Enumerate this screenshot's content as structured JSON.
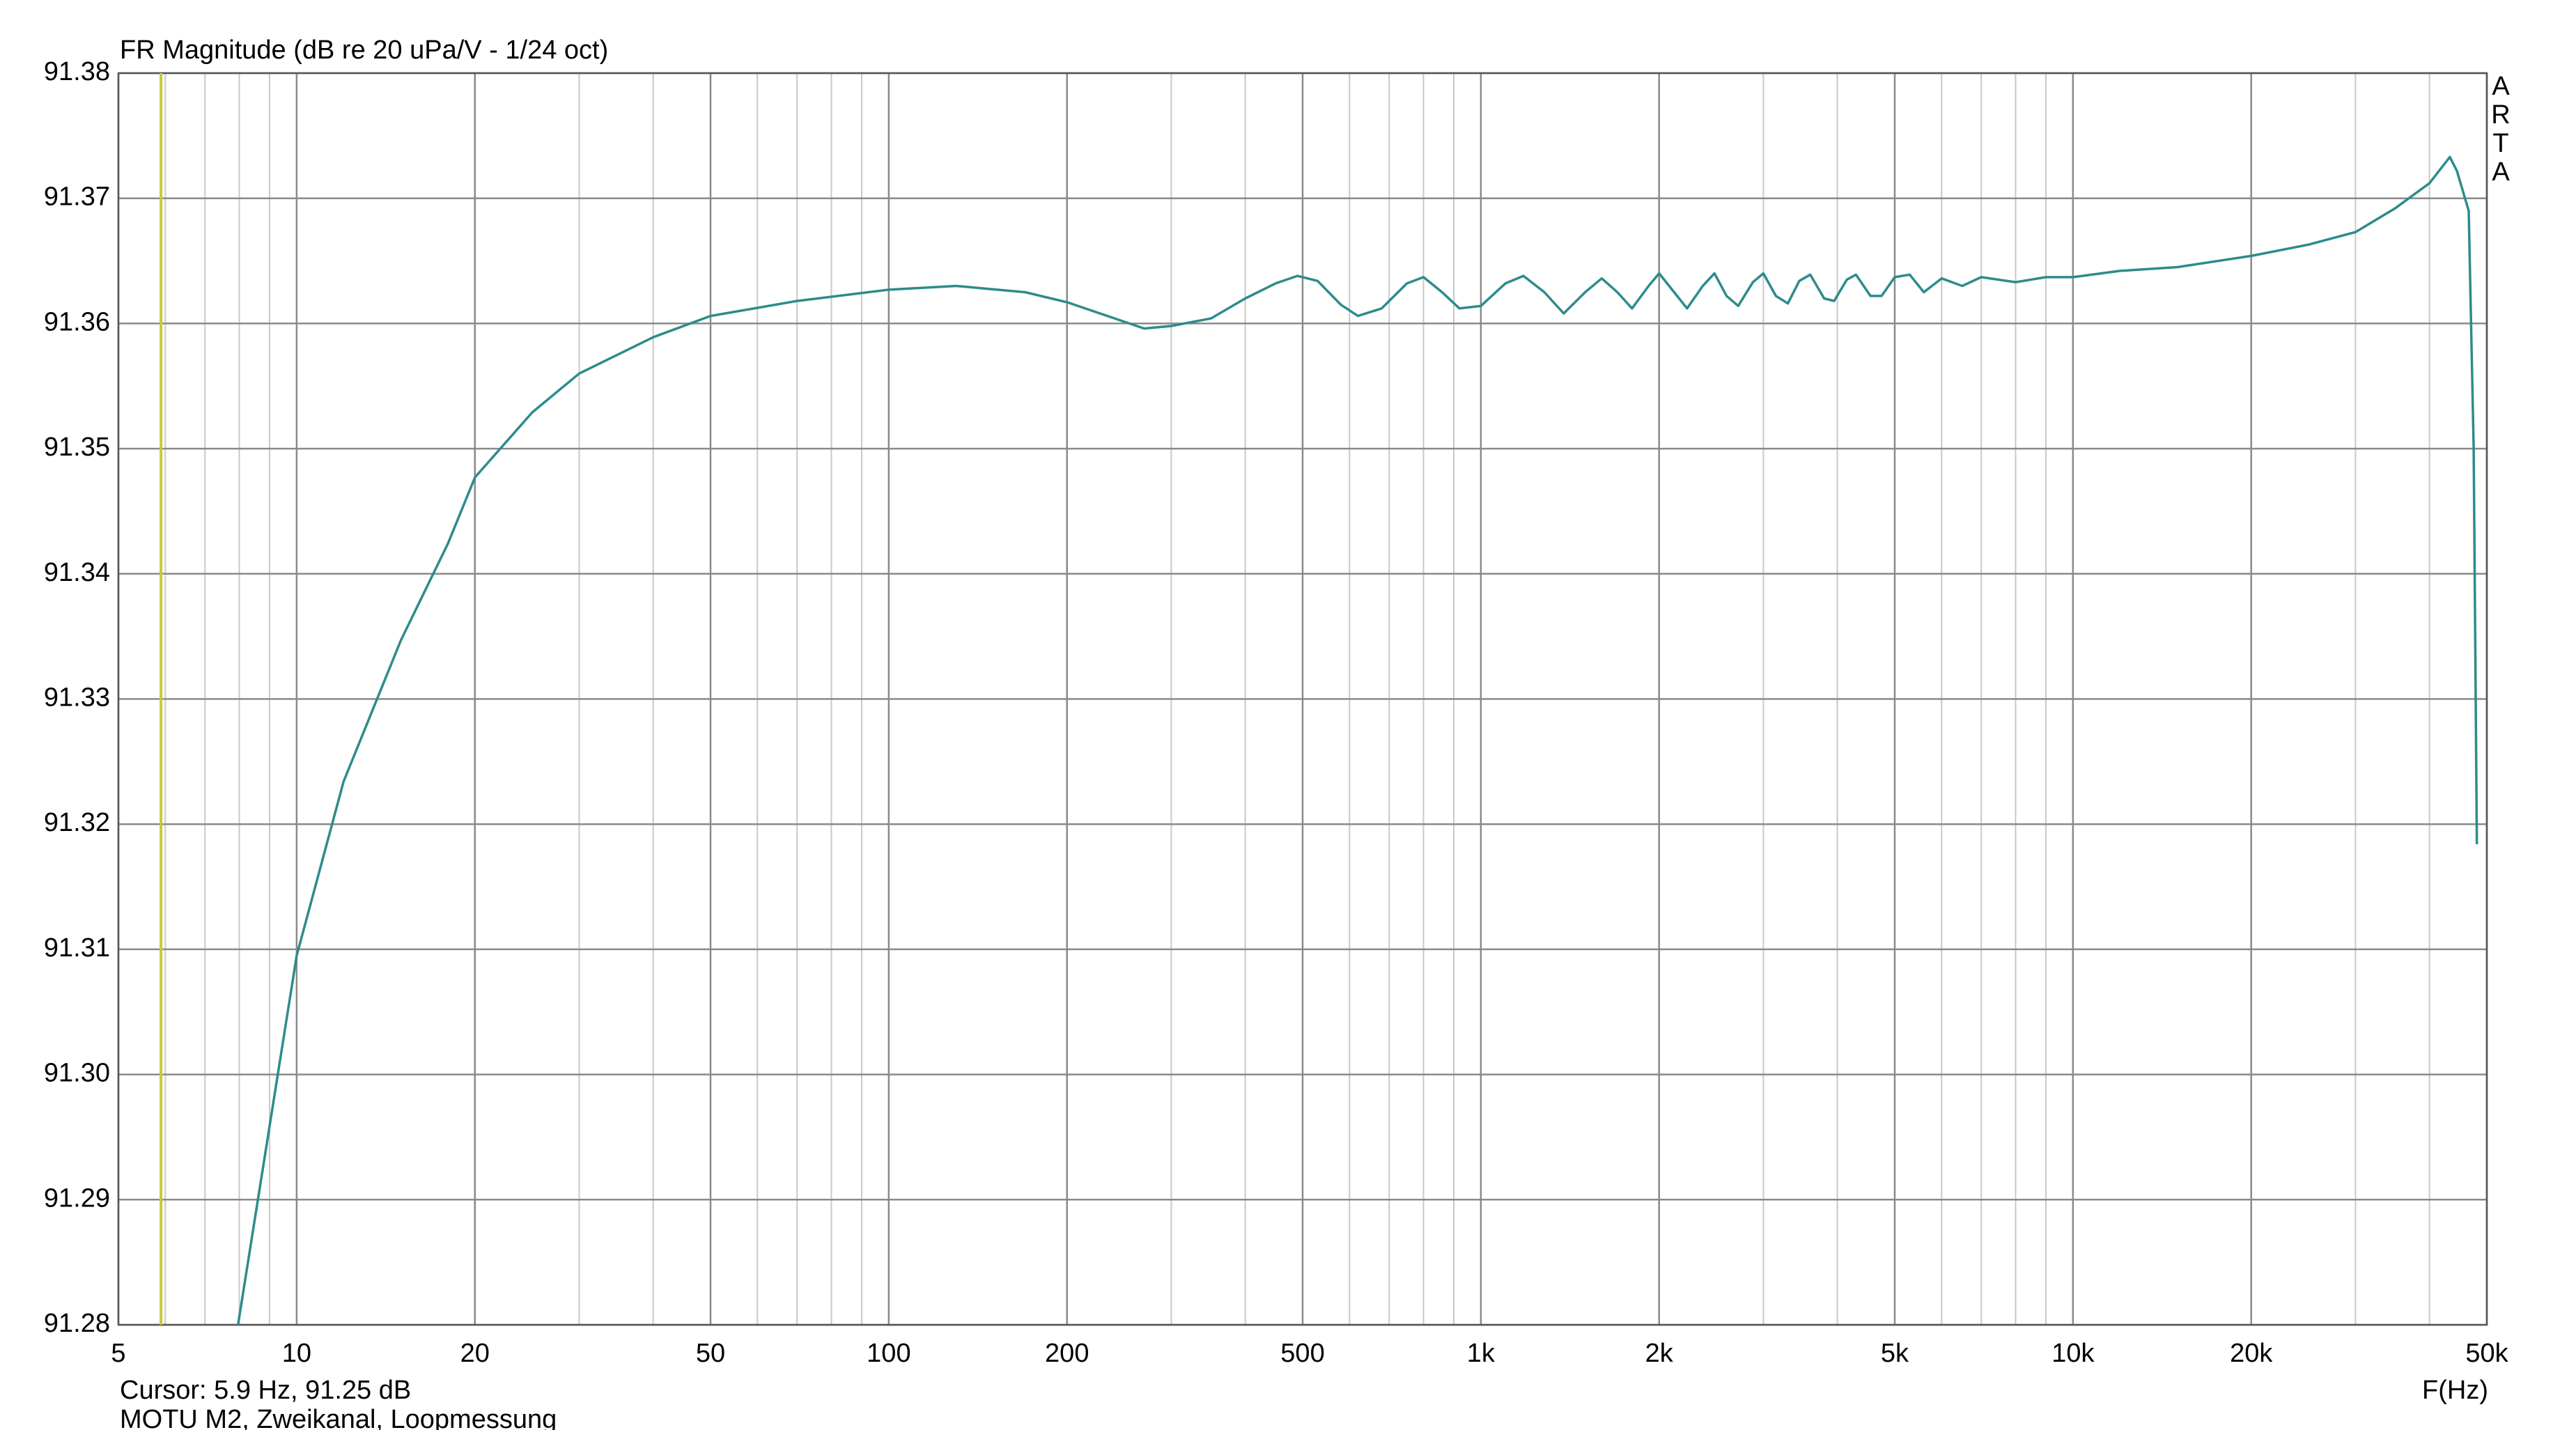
{
  "chart_data": {
    "type": "line",
    "title": "FR Magnitude (dB re 20 uPa/V - 1/24 oct)",
    "x_label": "F(Hz)",
    "footer": "MOTU M2, Zweikanal, Loopmessung",
    "side_label": [
      "A",
      "R",
      "T",
      "A"
    ],
    "cursor": {
      "x": 5.9,
      "label": "Cursor: 5.9 Hz, 91.25 dB",
      "color": "#c8c83c"
    },
    "color": "#2e8b8b",
    "x_log": true,
    "grid": true,
    "xlim": [
      5,
      50000
    ],
    "ylim": [
      91.28,
      91.38
    ],
    "xticks": [
      5,
      10,
      20,
      50,
      100,
      200,
      500,
      {
        "value": 1000,
        "label": "1k"
      },
      {
        "value": 2000,
        "label": "2k"
      },
      {
        "value": 5000,
        "label": "5k"
      },
      {
        "value": 10000,
        "label": "10k"
      },
      {
        "value": 20000,
        "label": "20k"
      },
      {
        "value": 50000,
        "label": "50k"
      }
    ],
    "x_minor_grid": [
      6,
      7,
      8,
      9,
      30,
      40,
      60,
      70,
      80,
      90,
      300,
      400,
      600,
      700,
      800,
      900,
      3000,
      4000,
      6000,
      7000,
      8000,
      9000,
      30000,
      40000
    ],
    "yticks": [
      91.28,
      91.29,
      {
        "value": 91.3,
        "label": "91.30"
      },
      91.31,
      91.32,
      91.33,
      91.34,
      91.35,
      91.36,
      91.37,
      91.38
    ],
    "x": [
      7.96,
      10,
      12,
      15,
      18,
      20,
      25,
      30,
      40,
      50,
      70,
      100,
      130,
      170,
      200,
      270,
      300,
      350,
      400,
      450,
      490,
      530,
      580,
      620,
      680,
      750,
      800,
      860,
      920,
      1000,
      1100,
      1180,
      1280,
      1380,
      1500,
      1600,
      1700,
      1800,
      1920,
      2000,
      2120,
      2230,
      2370,
      2480,
      2600,
      2720,
      2880,
      3000,
      3150,
      3300,
      3450,
      3600,
      3800,
      3950,
      4150,
      4300,
      4550,
      4750,
      5000,
      5300,
      5600,
      6000,
      6500,
      7000,
      8000,
      9000,
      10000,
      12000,
      15000,
      20000,
      25000,
      30000,
      35000,
      40000,
      43300,
      44500,
      46600,
      47500,
      48100
    ],
    "values": [
      91.28,
      91.3095,
      91.3234,
      91.3347,
      91.3424,
      91.3477,
      91.3529,
      91.356,
      91.3589,
      91.3606,
      91.3618,
      91.3627,
      91.363,
      91.3625,
      91.3617,
      91.3596,
      91.3598,
      91.3604,
      91.362,
      91.3632,
      91.3638,
      91.3634,
      91.3615,
      91.3606,
      91.3612,
      91.3632,
      91.3637,
      91.3625,
      91.3612,
      91.3614,
      91.3632,
      91.3638,
      91.3625,
      91.3608,
      91.3625,
      91.3636,
      91.3625,
      91.3612,
      91.363,
      91.364,
      91.3625,
      91.3612,
      91.363,
      91.364,
      91.3622,
      91.3614,
      91.3633,
      91.364,
      91.3622,
      91.3616,
      91.3634,
      91.3639,
      91.362,
      91.3618,
      91.3635,
      91.3639,
      91.3622,
      91.3622,
      91.3637,
      91.3639,
      91.3625,
      91.3636,
      91.363,
      91.3637,
      91.3633,
      91.3637,
      91.3637,
      91.3642,
      91.3645,
      91.3654,
      91.3663,
      91.3673,
      91.3692,
      91.3712,
      91.3733,
      91.3722,
      91.369,
      91.35,
      91.3184
    ]
  }
}
